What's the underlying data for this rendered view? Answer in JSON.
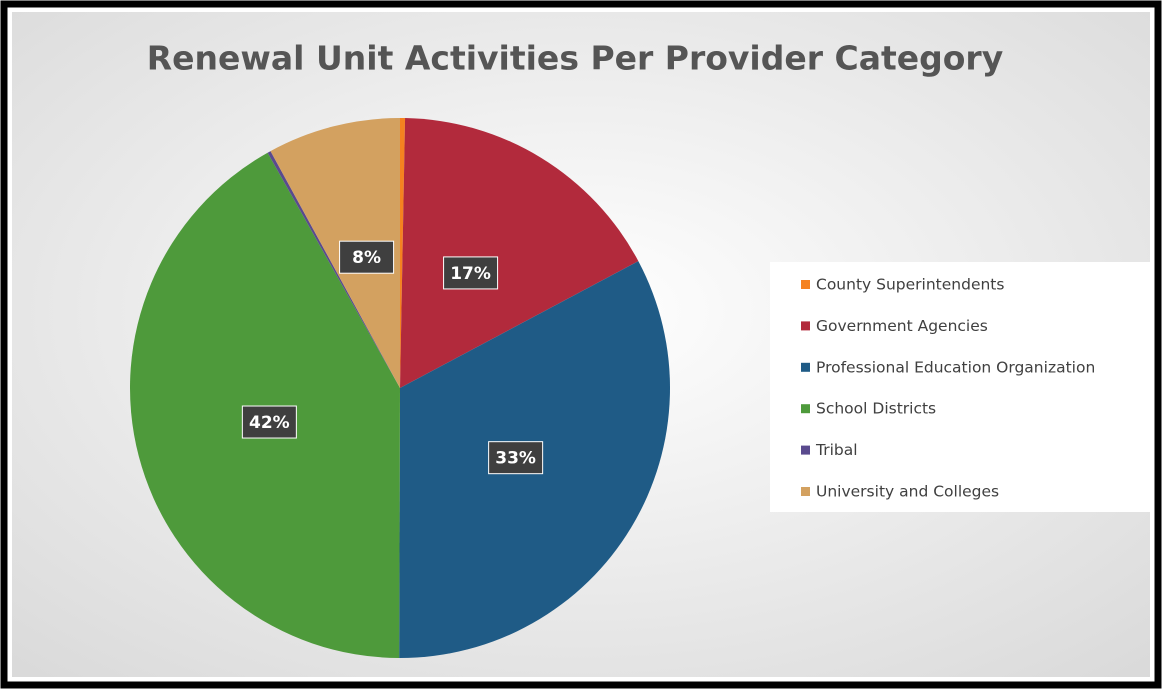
{
  "chart_data": {
    "type": "pie",
    "title": "Renewal Unit Activities Per Provider Category",
    "categories": [
      "County Superintendents",
      "Government Agencies",
      "Professional Education Organization",
      "School Districts",
      "Tribal",
      "University and Colleges"
    ],
    "values": [
      0.3,
      17,
      33,
      42,
      0.2,
      8
    ],
    "value_labels": [
      null,
      "17%",
      "33%",
      "42%",
      null,
      "8%"
    ],
    "colors": [
      "#f58220",
      "#b22a3c",
      "#1f5b86",
      "#4e9a3b",
      "#5a4a8e",
      "#d3a160"
    ],
    "legend": "right"
  }
}
